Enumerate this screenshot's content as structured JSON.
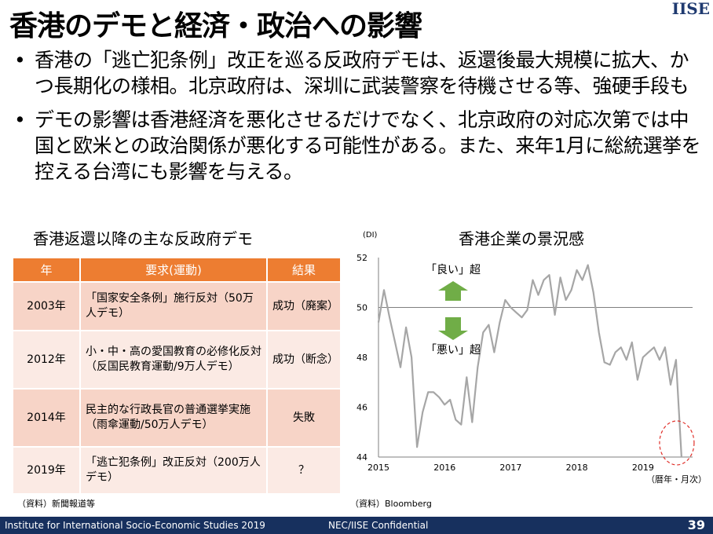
{
  "slide": {
    "title": "香港のデモと経済・政治への影響",
    "logo": "IISE",
    "bullets": [
      "香港の「逃亡犯条例」改正を巡る反政府デモは、返還後最大規模に拡大、かつ長期化の様相。北京政府は、深圳に武装警察を待機させる等、強硬手段も",
      "デモの影響は香港経済を悪化させるだけでなく、北京政府の対応次第では中国と欧米との政治関係が悪化する可能性がある。また、来年1月に総統選挙を控える台湾にも影響を与える。"
    ],
    "bullet_symbol": "•"
  },
  "table": {
    "title": "香港返還以降の主な反政府デモ",
    "headers": [
      "年",
      "要求(運動)",
      "結果"
    ],
    "rows": [
      {
        "year": "2003年",
        "demand": "「国家安全条例」施行反対（50万人デモ）",
        "result": "成功（廃案）"
      },
      {
        "year": "2012年",
        "demand": "小・中・高の愛国教育の必修化反対（反国民教育運動/9万人デモ）",
        "result": "成功（断念）"
      },
      {
        "year": "2014年",
        "demand": "民主的な行政長官の普通選挙実施（雨傘運動/50万人デモ）",
        "result": "失敗"
      },
      {
        "year": "2019年",
        "demand": "「逃亡犯条例」改正反対（200万人デモ）",
        "result": "？"
      }
    ],
    "source": "（資料）新聞報道等"
  },
  "chart": {
    "title": "香港企業の景況感",
    "source": "（資料）Bloomberg"
  },
  "chart_data": {
    "type": "line",
    "title": "香港企業の景況感",
    "ylabel": "(DI)",
    "xlabel": "（暦年・月次）",
    "ylim": [
      44,
      52
    ],
    "xlim": [
      2015,
      2019.75
    ],
    "yticks": [
      44,
      46,
      48,
      50,
      52
    ],
    "xticks": [
      2015,
      2016,
      2017,
      2018,
      2019
    ],
    "reference_line": 50,
    "annotations": [
      "「良い」超",
      "「悪い」超"
    ],
    "colors": {
      "line": "#a6a6a6",
      "arrow": "#70ad47",
      "highlight": "#e0302a"
    },
    "series": [
      {
        "values": [
          [
            2015.0,
            49.4
          ],
          [
            2015.083,
            50.7
          ],
          [
            2015.167,
            49.6
          ],
          [
            2015.25,
            48.6
          ],
          [
            2015.333,
            47.6
          ],
          [
            2015.417,
            49.2
          ],
          [
            2015.5,
            48.0
          ],
          [
            2015.583,
            44.4
          ],
          [
            2015.667,
            45.8
          ],
          [
            2015.75,
            46.6
          ],
          [
            2015.833,
            46.6
          ],
          [
            2015.917,
            46.4
          ],
          [
            2016.0,
            46.1
          ],
          [
            2016.083,
            46.3
          ],
          [
            2016.167,
            45.5
          ],
          [
            2016.25,
            45.3
          ],
          [
            2016.333,
            47.2
          ],
          [
            2016.417,
            45.4
          ],
          [
            2016.5,
            47.6
          ],
          [
            2016.583,
            49.0
          ],
          [
            2016.667,
            49.3
          ],
          [
            2016.75,
            48.2
          ],
          [
            2016.833,
            49.4
          ],
          [
            2016.917,
            50.3
          ],
          [
            2017.0,
            50.0
          ],
          [
            2017.083,
            49.8
          ],
          [
            2017.167,
            49.6
          ],
          [
            2017.25,
            49.9
          ],
          [
            2017.333,
            51.1
          ],
          [
            2017.417,
            50.5
          ],
          [
            2017.5,
            51.1
          ],
          [
            2017.583,
            51.3
          ],
          [
            2017.667,
            49.7
          ],
          [
            2017.75,
            51.2
          ],
          [
            2017.833,
            50.3
          ],
          [
            2017.917,
            50.7
          ],
          [
            2018.0,
            51.5
          ],
          [
            2018.083,
            51.1
          ],
          [
            2018.167,
            51.7
          ],
          [
            2018.25,
            50.6
          ],
          [
            2018.333,
            49.0
          ],
          [
            2018.417,
            47.8
          ],
          [
            2018.5,
            47.7
          ],
          [
            2018.583,
            48.2
          ],
          [
            2018.667,
            48.4
          ],
          [
            2018.75,
            47.9
          ],
          [
            2018.833,
            48.6
          ],
          [
            2018.917,
            47.1
          ],
          [
            2019.0,
            48.0
          ],
          [
            2019.083,
            48.2
          ],
          [
            2019.167,
            48.4
          ],
          [
            2019.25,
            47.9
          ],
          [
            2019.333,
            48.4
          ],
          [
            2019.417,
            46.9
          ],
          [
            2019.5,
            47.9
          ],
          [
            2019.583,
            44.0
          ]
        ]
      }
    ]
  },
  "footer": {
    "left": "Institute for International Socio-Economic Studies 2019",
    "middle": "NEC/IISE Confidential",
    "page": "39"
  }
}
